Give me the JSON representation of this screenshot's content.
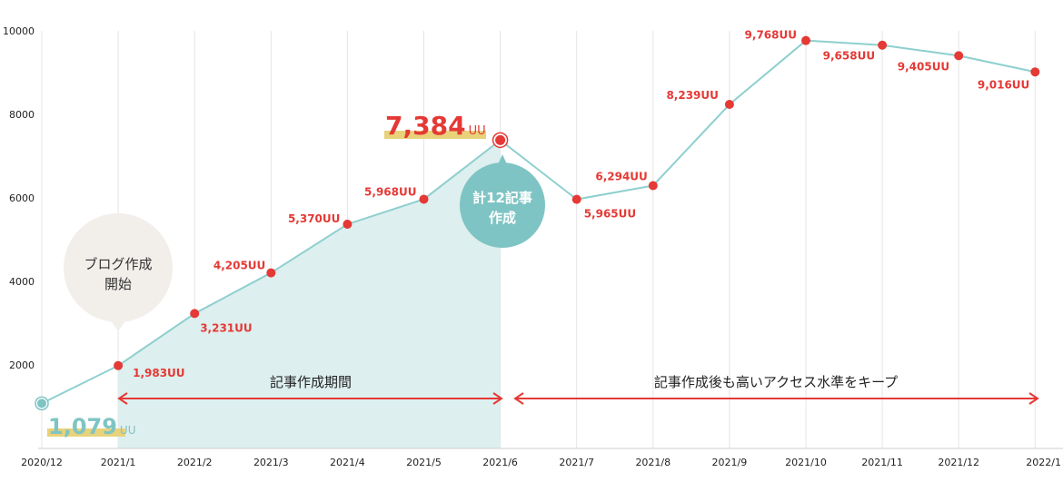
{
  "chart_data": {
    "type": "line",
    "x": [
      "2020/12",
      "2021/1",
      "2021/2",
      "2021/3",
      "2021/4",
      "2021/5",
      "2021/6",
      "2021/7",
      "2021/8",
      "2021/9",
      "2021/10",
      "2021/11",
      "2021/12",
      "2022/1"
    ],
    "y": [
      1079,
      1983,
      3231,
      4205,
      5370,
      5968,
      7384,
      5965,
      6294,
      8239,
      9768,
      9658,
      9405,
      9016
    ],
    "data_labels": [
      "1,079",
      "1,983UU",
      "3,231UU",
      "4,205UU",
      "5,370UU",
      "5,968UU",
      "7,384",
      "5,965UU",
      "6,294UU",
      "8,239UU",
      "9,768UU",
      "9,658UU",
      "9,405UU",
      "9,016UU"
    ],
    "unit_suffix": "UU",
    "yticks": [
      "10000",
      "8000",
      "6000",
      "4000",
      "2000"
    ],
    "ylim": [
      0,
      10000
    ],
    "grid": "vertical",
    "annotations": {
      "start_bubble": [
        "ブログ作成",
        "開始"
      ],
      "peak_bubble": [
        "計12記事",
        "作成"
      ],
      "period_left": "記事作成期間",
      "period_right": "記事作成後も高いアクセス水準をキープ"
    },
    "colors": {
      "line": "#8ecfcf",
      "point": "#e53935",
      "fill": "#ddefee",
      "teal": "#7fc4c4",
      "red": "#e53935",
      "highlight": "#e8d27a",
      "start_bubble": "#f2efeb",
      "grid": "#e4e4e4"
    }
  }
}
